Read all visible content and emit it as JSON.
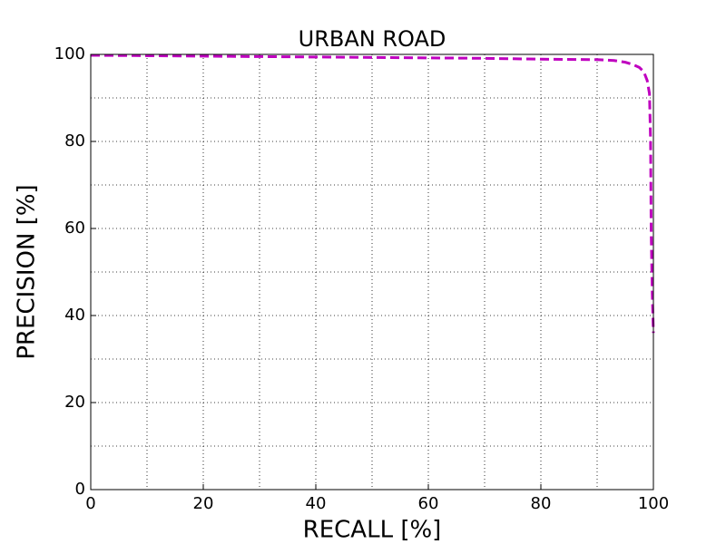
{
  "chart_data": {
    "type": "line",
    "title": "URBAN ROAD",
    "x_label": "RECALL [%]",
    "y_label": "PRECISION [%]",
    "x": [
      0,
      10,
      20,
      30,
      40,
      50,
      60,
      70,
      80,
      90,
      93,
      95,
      96.5,
      97.5,
      98.3,
      98.9,
      99.3,
      99.5,
      99.6,
      99.8,
      100
    ],
    "series": [
      {
        "name": "URBAN ROAD",
        "color": "#bf00bf",
        "values": [
          99.8,
          99.7,
          99.6,
          99.5,
          99.4,
          99.3,
          99.2,
          99.1,
          98.9,
          98.8,
          98.6,
          98.2,
          97.6,
          97,
          96,
          94,
          91,
          80,
          60,
          45,
          36
        ]
      }
    ],
    "xlim": [
      0,
      100
    ],
    "ylim": [
      0,
      100
    ],
    "xticks": [
      0,
      20,
      40,
      60,
      80,
      100
    ],
    "yticks": [
      0,
      20,
      40,
      60,
      80,
      100
    ],
    "x_minor_ticks": [
      10,
      30,
      50,
      70,
      90
    ],
    "y_minor_ticks": [
      10,
      30,
      50,
      70,
      90
    ],
    "grid": true,
    "line_style": "dashed"
  }
}
